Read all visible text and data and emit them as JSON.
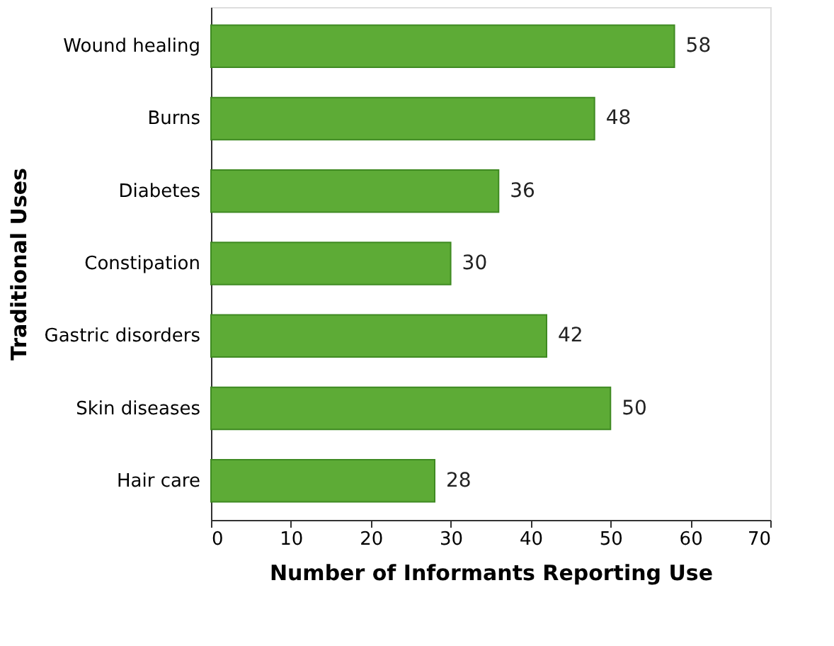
{
  "chart_data": {
    "type": "bar",
    "orientation": "horizontal",
    "xlabel": "Number of Informants Reporting Use",
    "ylabel": "Traditional Uses",
    "categories": [
      "Wound healing",
      "Burns",
      "Diabetes",
      "Constipation",
      "Gastric disorders",
      "Skin diseases",
      "Hair care"
    ],
    "values": [
      58,
      48,
      36,
      30,
      42,
      50,
      28
    ],
    "color": "#5dab36",
    "xlim": [
      0,
      70
    ],
    "xticks": [
      0,
      10,
      20,
      30,
      40,
      50,
      60,
      70
    ],
    "grid": false,
    "data_labels": true
  }
}
